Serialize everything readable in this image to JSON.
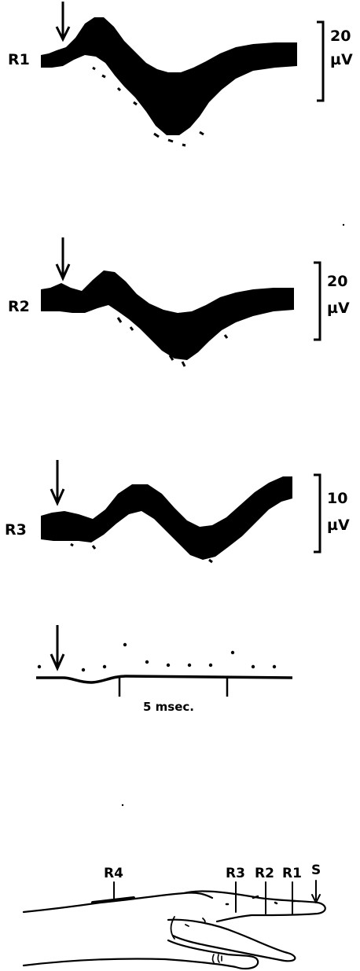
{
  "traces": [
    {
      "label": "R1",
      "scale_value": "20",
      "scale_unit": "µV"
    },
    {
      "label": "R2",
      "scale_value": "20",
      "scale_unit": "µV"
    },
    {
      "label": "R3",
      "scale_value": "10",
      "scale_unit": "µV"
    }
  ],
  "time_calibration": {
    "label": "5 msec."
  },
  "hand_diagram": {
    "sites": [
      "R4",
      "R3",
      "R2",
      "R1",
      "S"
    ]
  }
}
